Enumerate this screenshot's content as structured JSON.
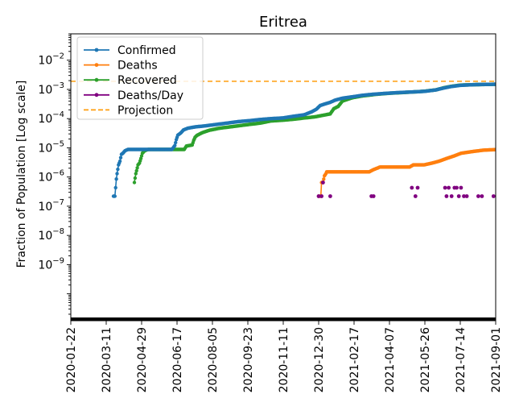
{
  "chart_data": {
    "type": "line",
    "title": "Eritrea",
    "xlabel": "",
    "ylabel": "Fraction of Population [Log scale]",
    "yscale": "log",
    "ylim": [
      1.2e-11,
      0.08
    ],
    "xlim": [
      "2020-01-22",
      "2021-09-01"
    ],
    "x_ticks": [
      "2020-01-22",
      "2020-03-11",
      "2020-04-29",
      "2020-06-17",
      "2020-08-05",
      "2020-09-23",
      "2020-11-11",
      "2020-12-30",
      "2021-02-17",
      "2021-04-07",
      "2021-05-26",
      "2021-07-14",
      "2021-09-01"
    ],
    "y_ticks": [
      {
        "value": 1e-09,
        "base": "10",
        "exp": "−9"
      },
      {
        "value": 1e-08,
        "base": "10",
        "exp": "−8"
      },
      {
        "value": 1e-07,
        "base": "10",
        "exp": "−7"
      },
      {
        "value": 1e-06,
        "base": "10",
        "exp": "−6"
      },
      {
        "value": 1e-05,
        "base": "10",
        "exp": "−5"
      },
      {
        "value": 0.0001,
        "base": "10",
        "exp": "−4"
      },
      {
        "value": 0.001,
        "base": "10",
        "exp": "−3"
      },
      {
        "value": 0.01,
        "base": "10",
        "exp": "−2"
      }
    ],
    "legend_position": "top-left",
    "projection": {
      "name": "Projection",
      "value": 0.0019,
      "color": "#ff9e0e",
      "style": "dashed"
    },
    "series": [
      {
        "name": "Confirmed",
        "color": "#1f77b4",
        "style": "line-marker",
        "points": [
          [
            "2020-03-21",
            2.2e-07
          ],
          [
            "2020-03-23",
            2.2e-07
          ],
          [
            "2020-03-25",
            8.5e-07
          ],
          [
            "2020-03-26",
            1.3e-06
          ],
          [
            "2020-03-28",
            2.6e-06
          ],
          [
            "2020-03-30",
            3.5e-06
          ],
          [
            "2020-04-01",
            6e-06
          ],
          [
            "2020-04-03",
            6.5e-06
          ],
          [
            "2020-04-06",
            7.9e-06
          ],
          [
            "2020-04-10",
            8.8e-06
          ],
          [
            "2020-04-20",
            8.8e-06
          ],
          [
            "2020-05-15",
            8.8e-06
          ],
          [
            "2020-06-10",
            8.8e-06
          ],
          [
            "2020-06-14",
            1.2e-05
          ],
          [
            "2020-06-16",
            1.9e-05
          ],
          [
            "2020-06-18",
            2.7e-05
          ],
          [
            "2020-06-22",
            3.2e-05
          ],
          [
            "2020-06-26",
            4.1e-05
          ],
          [
            "2020-07-02",
            4.7e-05
          ],
          [
            "2020-07-12",
            5.2e-05
          ],
          [
            "2020-07-25",
            5.6e-05
          ],
          [
            "2020-08-10",
            6.3e-05
          ],
          [
            "2020-08-25",
            7e-05
          ],
          [
            "2020-09-10",
            7.9e-05
          ],
          [
            "2020-09-25",
            8.5e-05
          ],
          [
            "2020-10-10",
            9.3e-05
          ],
          [
            "2020-10-25",
            0.0001
          ],
          [
            "2020-11-10",
            0.000105
          ],
          [
            "2020-11-25",
            0.00012
          ],
          [
            "2020-12-10",
            0.000135
          ],
          [
            "2020-12-20",
            0.00017
          ],
          [
            "2020-12-27",
            0.00021
          ],
          [
            "2021-01-01",
            0.00028
          ],
          [
            "2021-01-08",
            0.00032
          ],
          [
            "2021-01-15",
            0.00036
          ],
          [
            "2021-01-22",
            0.00043
          ],
          [
            "2021-02-01",
            0.0005
          ],
          [
            "2021-02-15",
            0.00056
          ],
          [
            "2021-03-01",
            0.00063
          ],
          [
            "2021-03-15",
            0.00068
          ],
          [
            "2021-04-01",
            0.00073
          ],
          [
            "2021-04-20",
            0.00078
          ],
          [
            "2021-05-10",
            0.00082
          ],
          [
            "2021-05-26",
            0.00086
          ],
          [
            "2021-06-10",
            0.00096
          ],
          [
            "2021-06-20",
            0.0011
          ],
          [
            "2021-07-01",
            0.00125
          ],
          [
            "2021-07-14",
            0.00138
          ],
          [
            "2021-08-01",
            0.00145
          ],
          [
            "2021-08-15",
            0.00148
          ],
          [
            "2021-09-01",
            0.0015
          ]
        ]
      },
      {
        "name": "Deaths",
        "color": "#ff7f0e",
        "style": "line-marker",
        "points": [
          [
            "2020-12-30",
            2.2e-07
          ],
          [
            "2021-01-02",
            2.2e-07
          ],
          [
            "2021-01-03",
            6.5e-07
          ],
          [
            "2021-01-05",
            6.5e-07
          ],
          [
            "2021-01-07",
            1.1e-06
          ],
          [
            "2021-01-09",
            1.3e-06
          ],
          [
            "2021-01-10",
            1.5e-06
          ],
          [
            "2021-01-20",
            1.5e-06
          ],
          [
            "2021-02-10",
            1.5e-06
          ],
          [
            "2021-03-10",
            1.5e-06
          ],
          [
            "2021-03-15",
            1.75e-06
          ],
          [
            "2021-03-25",
            2.2e-06
          ],
          [
            "2021-04-15",
            2.2e-06
          ],
          [
            "2021-05-05",
            2.2e-06
          ],
          [
            "2021-05-10",
            2.6e-06
          ],
          [
            "2021-05-25",
            2.6e-06
          ],
          [
            "2021-06-05",
            3e-06
          ],
          [
            "2021-06-15",
            3.5e-06
          ],
          [
            "2021-06-25",
            4.3e-06
          ],
          [
            "2021-07-05",
            5.2e-06
          ],
          [
            "2021-07-15",
            6.5e-06
          ],
          [
            "2021-07-30",
            7.4e-06
          ],
          [
            "2021-08-15",
            8.3e-06
          ],
          [
            "2021-09-01",
            8.7e-06
          ]
        ]
      },
      {
        "name": "Recovered",
        "color": "#2ca02c",
        "style": "line-marker",
        "points": [
          [
            "2020-04-19",
            6.5e-07
          ],
          [
            "2020-04-21",
            1.3e-06
          ],
          [
            "2020-04-24",
            2.6e-06
          ],
          [
            "2020-04-26",
            3e-06
          ],
          [
            "2020-04-28",
            4.3e-06
          ],
          [
            "2020-04-30",
            6.5e-06
          ],
          [
            "2020-05-03",
            7.9e-06
          ],
          [
            "2020-05-08",
            8.8e-06
          ],
          [
            "2020-06-10",
            8.8e-06
          ],
          [
            "2020-06-27",
            8.8e-06
          ],
          [
            "2020-06-30",
            1.15e-05
          ],
          [
            "2020-07-08",
            1.25e-05
          ],
          [
            "2020-07-10",
            1.8e-05
          ],
          [
            "2020-07-12",
            2.3e-05
          ],
          [
            "2020-07-15",
            2.7e-05
          ],
          [
            "2020-07-22",
            3.3e-05
          ],
          [
            "2020-08-01",
            4e-05
          ],
          [
            "2020-08-15",
            4.7e-05
          ],
          [
            "2020-09-01",
            5.3e-05
          ],
          [
            "2020-09-20",
            6.1e-05
          ],
          [
            "2020-10-10",
            7e-05
          ],
          [
            "2020-10-25",
            8.3e-05
          ],
          [
            "2020-11-10",
            8.8e-05
          ],
          [
            "2020-11-25",
            9.5e-05
          ],
          [
            "2020-12-10",
            0.000105
          ],
          [
            "2020-12-25",
            0.000115
          ],
          [
            "2021-01-05",
            0.00013
          ],
          [
            "2021-01-15",
            0.000145
          ],
          [
            "2021-01-20",
            0.00022
          ],
          [
            "2021-01-26",
            0.00026
          ],
          [
            "2021-02-01",
            0.0004
          ],
          [
            "2021-02-15",
            0.00052
          ],
          [
            "2021-03-01",
            0.0006
          ],
          [
            "2021-03-20",
            0.00068
          ],
          [
            "2021-04-07",
            0.00074
          ],
          [
            "2021-04-25",
            0.00078
          ],
          [
            "2021-05-15",
            0.00083
          ],
          [
            "2021-05-26",
            0.00087
          ],
          [
            "2021-06-10",
            0.00096
          ],
          [
            "2021-06-20",
            0.00112
          ],
          [
            "2021-07-01",
            0.00127
          ],
          [
            "2021-07-14",
            0.0014
          ],
          [
            "2021-08-01",
            0.00145
          ],
          [
            "2021-08-20",
            0.00148
          ],
          [
            "2021-09-01",
            0.0015
          ]
        ]
      },
      {
        "name": "Deaths/Day",
        "color": "#800080",
        "style": "marker",
        "points": [
          [
            "2020-12-30",
            2.2e-07
          ],
          [
            "2021-01-03",
            2.2e-07
          ],
          [
            "2021-01-05",
            6.5e-07
          ],
          [
            "2021-01-15",
            2.2e-07
          ],
          [
            "2021-03-13",
            2.2e-07
          ],
          [
            "2021-03-16",
            2.2e-07
          ],
          [
            "2021-05-08",
            4.3e-07
          ],
          [
            "2021-05-13",
            2.2e-07
          ],
          [
            "2021-05-16",
            4.3e-07
          ],
          [
            "2021-06-23",
            4.3e-07
          ],
          [
            "2021-06-25",
            2.2e-07
          ],
          [
            "2021-06-28",
            4.3e-07
          ],
          [
            "2021-07-02",
            2.2e-07
          ],
          [
            "2021-07-06",
            4.3e-07
          ],
          [
            "2021-07-09",
            4.3e-07
          ],
          [
            "2021-07-12",
            2.2e-07
          ],
          [
            "2021-07-15",
            4.3e-07
          ],
          [
            "2021-07-19",
            2.2e-07
          ],
          [
            "2021-07-23",
            2.2e-07
          ],
          [
            "2021-08-08",
            2.2e-07
          ],
          [
            "2021-08-13",
            2.2e-07
          ],
          [
            "2021-08-29",
            2.2e-07
          ]
        ]
      }
    ]
  }
}
